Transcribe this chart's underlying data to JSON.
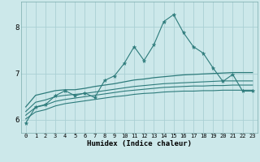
{
  "x": [
    0,
    1,
    2,
    3,
    4,
    5,
    6,
    7,
    8,
    9,
    10,
    11,
    12,
    13,
    14,
    15,
    16,
    17,
    18,
    19,
    20,
    21,
    22,
    23
  ],
  "line_spiky": [
    5.93,
    6.28,
    6.33,
    6.52,
    6.63,
    6.52,
    6.58,
    6.48,
    6.85,
    6.95,
    7.22,
    7.58,
    7.28,
    7.62,
    8.12,
    8.27,
    7.88,
    7.58,
    7.44,
    7.12,
    6.83,
    6.98,
    6.62,
    6.62
  ],
  "line_upper": [
    6.28,
    6.53,
    6.58,
    6.63,
    6.65,
    6.65,
    6.68,
    6.72,
    6.75,
    6.78,
    6.82,
    6.86,
    6.88,
    6.91,
    6.93,
    6.95,
    6.97,
    6.98,
    6.99,
    7.0,
    7.01,
    7.02,
    7.02,
    7.02
  ],
  "line_mid1": [
    6.18,
    6.38,
    6.43,
    6.5,
    6.53,
    6.55,
    6.57,
    6.6,
    6.63,
    6.66,
    6.69,
    6.72,
    6.74,
    6.76,
    6.78,
    6.79,
    6.8,
    6.81,
    6.82,
    6.83,
    6.84,
    6.84,
    6.84,
    6.84
  ],
  "line_mid2": [
    6.1,
    6.27,
    6.32,
    6.4,
    6.44,
    6.47,
    6.5,
    6.53,
    6.56,
    6.59,
    6.62,
    6.64,
    6.66,
    6.68,
    6.7,
    6.71,
    6.72,
    6.73,
    6.73,
    6.74,
    6.74,
    6.75,
    6.75,
    6.75
  ],
  "line_lower": [
    6.02,
    6.17,
    6.22,
    6.3,
    6.35,
    6.38,
    6.41,
    6.44,
    6.47,
    6.5,
    6.52,
    6.55,
    6.57,
    6.58,
    6.6,
    6.61,
    6.62,
    6.62,
    6.63,
    6.63,
    6.64,
    6.64,
    6.64,
    6.64
  ],
  "bg_color": "#cce8ea",
  "grid_color": "#aad0d4",
  "line_color": "#2d7b7b",
  "xlabel": "Humidex (Indice chaleur)",
  "yticks": [
    6,
    7,
    8
  ],
  "ylim": [
    5.72,
    8.55
  ],
  "xlim": [
    -0.5,
    23.5
  ]
}
